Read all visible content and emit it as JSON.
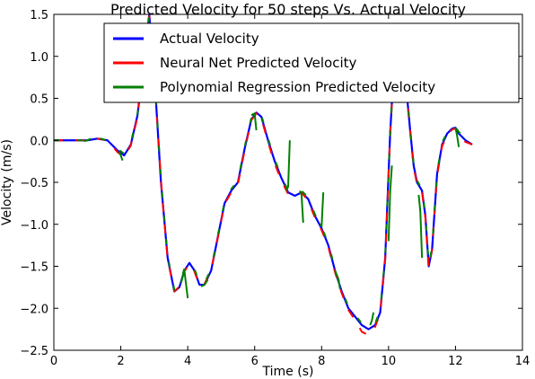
{
  "chart_data": {
    "type": "line",
    "title": "Predicted Velocity for 50 steps Vs. Actual Velocity",
    "xlabel": "Time (s)",
    "ylabel": "Velocity (m/s)",
    "xlim": [
      0,
      14
    ],
    "ylim": [
      -2.5,
      1.5
    ],
    "xticks": [
      0,
      2,
      4,
      6,
      8,
      10,
      12,
      14
    ],
    "yticks": [
      -2.5,
      -2.0,
      -1.5,
      -1.0,
      -0.5,
      0.0,
      0.5,
      1.0,
      1.5
    ],
    "xtick_labels": [
      "0",
      "2",
      "4",
      "6",
      "8",
      "10",
      "12",
      "14"
    ],
    "ytick_labels": [
      "−2.5",
      "−2.0",
      "−1.5",
      "−1.0",
      "−0.5",
      "0.0",
      "0.5",
      "1.0",
      "1.5"
    ],
    "legend_position": "top-right",
    "grid": false,
    "series": [
      {
        "name": "Actual Velocity",
        "color": "#0000ff",
        "x": [
          0.0,
          0.5,
          1.0,
          1.3,
          1.6,
          1.9,
          2.1,
          2.3,
          2.5,
          2.7,
          2.85,
          3.0,
          3.2,
          3.4,
          3.6,
          3.75,
          3.9,
          4.05,
          4.2,
          4.35,
          4.5,
          4.7,
          4.9,
          5.1,
          5.3,
          5.5,
          5.7,
          5.9,
          6.05,
          6.2,
          6.4,
          6.6,
          6.8,
          7.0,
          7.2,
          7.4,
          7.6,
          7.8,
          8.0,
          8.2,
          8.4,
          8.6,
          8.8,
          9.0,
          9.2,
          9.4,
          9.6,
          9.75,
          9.9,
          10.05,
          10.15,
          10.3,
          10.5,
          10.65,
          10.75,
          10.85,
          11.0,
          11.1,
          11.2,
          11.3,
          11.45,
          11.6,
          11.75,
          11.9,
          12.0,
          12.1,
          12.3,
          12.5
        ],
        "y": [
          0.0,
          0.0,
          0.0,
          0.02,
          0.0,
          -0.12,
          -0.18,
          -0.05,
          0.3,
          1.0,
          1.5,
          0.8,
          -0.5,
          -1.4,
          -1.8,
          -1.75,
          -1.55,
          -1.46,
          -1.55,
          -1.72,
          -1.72,
          -1.55,
          -1.15,
          -0.75,
          -0.6,
          -0.5,
          -0.1,
          0.25,
          0.33,
          0.28,
          0.0,
          -0.25,
          -0.45,
          -0.62,
          -0.66,
          -0.62,
          -0.7,
          -0.9,
          -1.05,
          -1.25,
          -1.55,
          -1.8,
          -2.0,
          -2.1,
          -2.2,
          -2.25,
          -2.2,
          -2.05,
          -1.4,
          0.1,
          0.8,
          1.0,
          0.75,
          0.1,
          -0.3,
          -0.5,
          -0.6,
          -0.9,
          -1.5,
          -1.3,
          -0.4,
          -0.05,
          0.08,
          0.14,
          0.15,
          0.08,
          0.0,
          -0.05
        ]
      },
      {
        "name": "Neural Net Predicted Velocity",
        "color": "#ff0000",
        "x": [
          0.0,
          0.5,
          1.0,
          1.3,
          1.6,
          1.9,
          2.1,
          2.3,
          2.5,
          2.7,
          2.85,
          3.0,
          3.2,
          3.4,
          3.6,
          3.75,
          3.9,
          4.05,
          4.2,
          4.35,
          4.5,
          4.7,
          4.9,
          5.1,
          5.3,
          5.5,
          5.7,
          5.9,
          6.05,
          6.2,
          6.4,
          6.6,
          6.8,
          7.0,
          7.2,
          7.4,
          7.6,
          7.8,
          8.0,
          8.2,
          8.4,
          8.6,
          8.8,
          9.0,
          9.2,
          9.4,
          9.6,
          9.75,
          9.9,
          10.05,
          10.15,
          10.3,
          10.5,
          10.65,
          10.75,
          10.85,
          11.0,
          11.1,
          11.2,
          11.3,
          11.45,
          11.6,
          11.75,
          11.9,
          12.0,
          12.1,
          12.3,
          12.5
        ],
        "y": [
          0.0,
          0.0,
          0.0,
          0.02,
          0.0,
          -0.14,
          -0.2,
          -0.06,
          0.28,
          0.98,
          1.48,
          0.8,
          -0.48,
          -1.42,
          -1.8,
          -1.74,
          -1.56,
          -1.47,
          -1.56,
          -1.73,
          -1.71,
          -1.54,
          -1.16,
          -0.76,
          -0.62,
          -0.52,
          -0.12,
          0.24,
          0.32,
          0.26,
          -0.02,
          -0.28,
          -0.48,
          -0.64,
          -0.66,
          -0.62,
          -0.72,
          -0.92,
          -1.07,
          -1.27,
          -1.57,
          -1.82,
          -2.02,
          -2.14,
          -2.28,
          -2.32,
          -2.22,
          -2.06,
          -1.42,
          0.08,
          0.78,
          0.98,
          0.73,
          0.08,
          -0.32,
          -0.52,
          -0.62,
          -0.92,
          -1.52,
          -1.3,
          -0.42,
          -0.07,
          0.06,
          0.13,
          0.14,
          0.06,
          -0.02,
          -0.05
        ]
      },
      {
        "name": "Polynomial Regression Predicted Velocity",
        "color": "#008000",
        "x": [
          0.0,
          0.5,
          1.0,
          1.3,
          1.6,
          1.9,
          2.1,
          2.3,
          2.5,
          2.7,
          2.85,
          3.0,
          3.2,
          3.4,
          3.6,
          3.75,
          3.9,
          4.05,
          4.2,
          4.35,
          4.5,
          4.7,
          4.9,
          5.1,
          5.3,
          5.5,
          5.7,
          5.9,
          6.05,
          6.2,
          6.4,
          6.6,
          6.8,
          7.0,
          7.2,
          7.4,
          7.6,
          7.8,
          8.0,
          8.2,
          8.4,
          8.6,
          8.8,
          9.0,
          9.2,
          9.4,
          9.6,
          9.75,
          9.9,
          10.05,
          10.15,
          10.3,
          10.5,
          10.65,
          10.75,
          10.85,
          11.0,
          11.1,
          11.2,
          11.3,
          11.45,
          11.6,
          11.75,
          11.9,
          12.0,
          12.1,
          12.3,
          12.5
        ],
        "y": [
          0.0,
          0.0,
          0.0,
          0.03,
          0.0,
          -0.1,
          -0.16,
          -0.03,
          0.32,
          1.02,
          1.5,
          0.82,
          -0.46,
          -1.38,
          -1.78,
          -1.72,
          -1.53,
          -1.45,
          -1.53,
          -1.7,
          -1.7,
          -1.53,
          -1.13,
          -0.73,
          -0.58,
          -0.48,
          -0.08,
          0.27,
          0.35,
          0.3,
          0.02,
          -0.23,
          -0.43,
          -0.6,
          -0.64,
          -0.6,
          -0.68,
          -0.88,
          -1.03,
          -1.23,
          -1.53,
          -1.78,
          -1.98,
          -2.08,
          -2.18,
          -2.22,
          -2.18,
          -2.02,
          -1.38,
          0.12,
          0.82,
          1.02,
          0.77,
          0.12,
          -0.28,
          -0.48,
          -0.58,
          -0.88,
          -1.48,
          -1.28,
          -0.38,
          -0.03,
          0.1,
          0.16,
          0.16,
          0.1,
          0.02,
          -0.04
        ]
      }
    ],
    "poly_segments": [
      {
        "x": [
          0.9,
          1.0,
          1.1
        ],
        "y": [
          -0.01,
          0.0,
          0.02
        ]
      },
      {
        "x": [
          1.95,
          2.0,
          2.05
        ],
        "y": [
          -0.14,
          -0.18,
          -0.24
        ]
      },
      {
        "x": [
          3.8,
          3.9,
          4.0
        ],
        "y": [
          -1.7,
          -1.55,
          -1.88
        ]
      },
      {
        "x": [
          4.4,
          4.5,
          4.6
        ],
        "y": [
          -1.74,
          -1.72,
          -1.66
        ]
      },
      {
        "x": [
          5.9,
          6.0,
          6.05
        ],
        "y": [
          0.3,
          0.32,
          0.12
        ]
      },
      {
        "x": [
          6.95,
          7.0,
          7.05
        ],
        "y": [
          -0.6,
          -0.55,
          0.0
        ]
      },
      {
        "x": [
          7.35,
          7.4,
          7.45
        ],
        "y": [
          -0.6,
          -0.65,
          -0.98
        ]
      },
      {
        "x": [
          7.95,
          8.0,
          8.05
        ],
        "y": [
          -1.0,
          -1.02,
          -0.62
        ]
      },
      {
        "x": [
          8.4,
          8.5,
          8.55
        ],
        "y": [
          -1.55,
          -1.65,
          -1.77
        ]
      },
      {
        "x": [
          9.45,
          9.5,
          9.55
        ],
        "y": [
          -2.2,
          -2.15,
          -2.05
        ]
      },
      {
        "x": [
          10.0,
          10.05,
          10.1
        ],
        "y": [
          -1.2,
          -0.6,
          -0.3
        ]
      },
      {
        "x": [
          10.9,
          10.95,
          11.0
        ],
        "y": [
          -0.65,
          -0.85,
          -1.4
        ]
      },
      {
        "x": [
          12.0,
          12.05,
          12.1
        ],
        "y": [
          0.15,
          0.05,
          -0.08
        ]
      }
    ]
  }
}
